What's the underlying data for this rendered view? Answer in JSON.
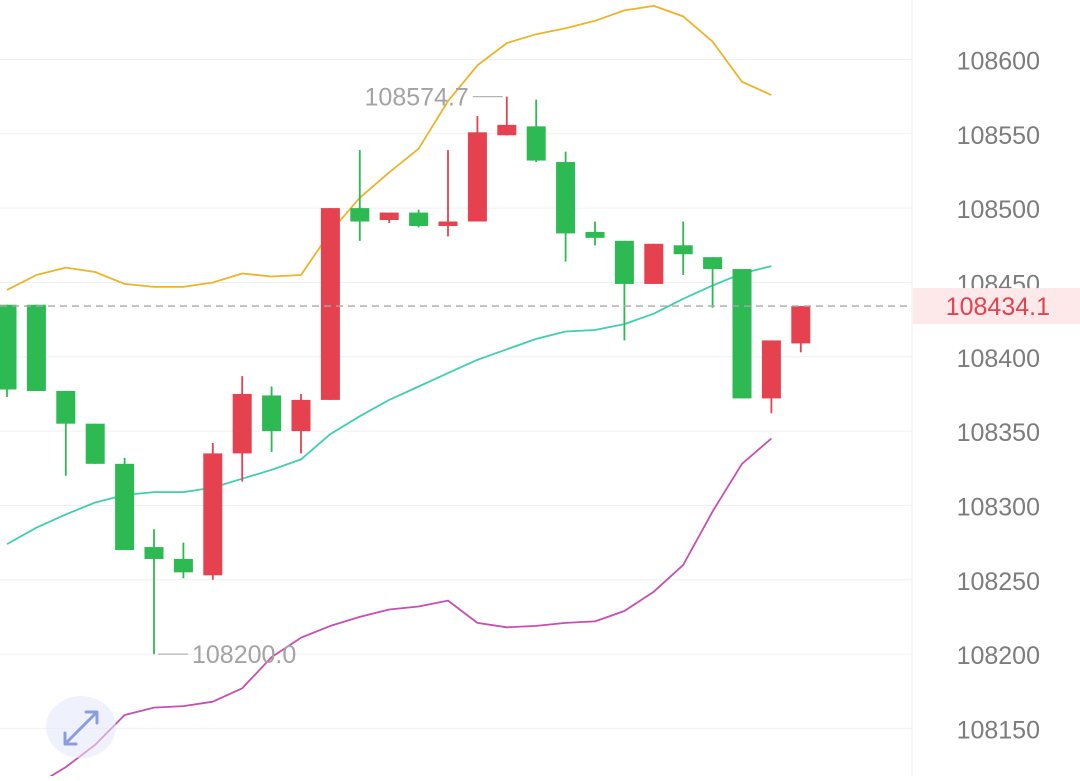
{
  "chart_data": {
    "type": "candlestick",
    "ylim": [
      108118,
      108640
    ],
    "y_ticks": [
      "108150",
      "108200",
      "108250",
      "108300",
      "108350",
      "108400",
      "108450",
      "108500",
      "108550",
      "108600"
    ],
    "grid": true,
    "candles": [
      {
        "open": 108435,
        "high": 108435,
        "low": 108373,
        "close": 108378
      },
      {
        "open": 108435,
        "high": 108435,
        "low": 108377,
        "close": 108377
      },
      {
        "open": 108377,
        "high": 108377,
        "low": 108320,
        "close": 108355
      },
      {
        "open": 108355,
        "high": 108355,
        "low": 108328,
        "close": 108328
      },
      {
        "open": 108328,
        "high": 108332,
        "low": 108270,
        "close": 108270
      },
      {
        "open": 108272,
        "high": 108284,
        "low": 108200,
        "close": 108264
      },
      {
        "open": 108264,
        "high": 108275,
        "low": 108251,
        "close": 108255
      },
      {
        "open": 108253,
        "high": 108342,
        "low": 108250,
        "close": 108335
      },
      {
        "open": 108335,
        "high": 108387,
        "low": 108316,
        "close": 108375
      },
      {
        "open": 108374,
        "high": 108380,
        "low": 108336,
        "close": 108350
      },
      {
        "open": 108350,
        "high": 108375,
        "low": 108335,
        "close": 108371
      },
      {
        "open": 108371,
        "high": 108500,
        "low": 108371,
        "close": 108500
      },
      {
        "open": 108500,
        "high": 108539,
        "low": 108478,
        "close": 108491
      },
      {
        "open": 108492,
        "high": 108497,
        "low": 108490,
        "close": 108497
      },
      {
        "open": 108497,
        "high": 108499,
        "low": 108487,
        "close": 108488
      },
      {
        "open": 108488,
        "high": 108539,
        "low": 108481,
        "close": 108491
      },
      {
        "open": 108491,
        "high": 108562,
        "low": 108491,
        "close": 108551
      },
      {
        "open": 108549,
        "high": 108575,
        "low": 108549,
        "close": 108556
      },
      {
        "open": 108555,
        "high": 108573,
        "low": 108531,
        "close": 108532
      },
      {
        "open": 108531,
        "high": 108538,
        "low": 108464,
        "close": 108483
      },
      {
        "open": 108484,
        "high": 108491,
        "low": 108475,
        "close": 108480
      },
      {
        "open": 108478,
        "high": 108478,
        "low": 108411,
        "close": 108449
      },
      {
        "open": 108449,
        "high": 108476,
        "low": 108449,
        "close": 108476
      },
      {
        "open": 108475,
        "high": 108491,
        "low": 108455,
        "close": 108469
      },
      {
        "open": 108467,
        "high": 108467,
        "low": 108433,
        "close": 108459
      },
      {
        "open": 108459,
        "high": 108459,
        "low": 108372,
        "close": 108372
      },
      {
        "open": 108372,
        "high": 108411,
        "low": 108362,
        "close": 108411
      },
      {
        "open": 108409,
        "high": 108434.1,
        "low": 108403,
        "close": 108434.1
      }
    ],
    "upper_band": [
      108445,
      108455,
      108460,
      108457,
      108449,
      108447,
      108447,
      108450,
      108456,
      108454,
      108455,
      108484,
      108507,
      108524,
      108540,
      108572,
      108596,
      108611,
      108617,
      108621,
      108626,
      108633,
      108636,
      108629,
      108612,
      108585,
      108576
    ],
    "middle_band": [
      108274,
      108285,
      108294,
      108302,
      108307,
      108309,
      108309,
      108312,
      108318,
      108324,
      108331,
      108348,
      108360,
      108371,
      108380,
      108389,
      108398,
      108405,
      108412,
      108417,
      108418,
      108422,
      108429,
      108439,
      108448,
      108456,
      108461
    ],
    "lower_band": [
      108104,
      108112,
      108124,
      108139,
      108159,
      108164,
      108165,
      108168,
      108177,
      108198,
      108211,
      108219,
      108225,
      108230,
      108232,
      108236,
      108221,
      108218,
      108219,
      108221,
      108222,
      108229,
      108242,
      108260,
      108296,
      108328,
      108345
    ],
    "max_label": "108574.7",
    "min_label": "108200.0",
    "current_price_label": "108434.1",
    "colors": {
      "up": "#e5414f",
      "down": "#2dba53",
      "upper_band": "#ecb42a",
      "middle_band": "#3fcfaf",
      "lower_band": "#c74fb1",
      "current_price": "#e5414f",
      "current_price_bg": "#fde9ea"
    }
  },
  "expand_icon": "diagonal-expand-arrows-icon"
}
